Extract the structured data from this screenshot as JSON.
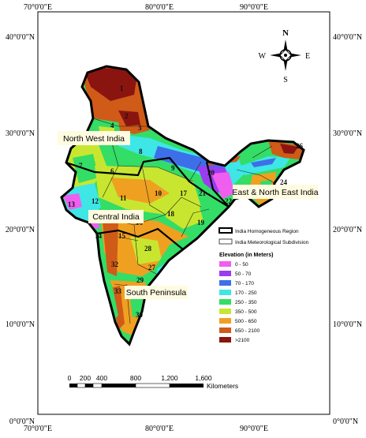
{
  "map": {
    "lon_labels": [
      "70°0'0\"E",
      "80°0'0\"E",
      "90°0'0\"E"
    ],
    "lat_labels": [
      "40°0'0\"N",
      "30°0'0\"N",
      "20°0'0\"N",
      "10°0'0\"N",
      "0°0'0\"N"
    ],
    "regions": {
      "nw": "North West India",
      "central": "Central India",
      "south": "South Peninsula",
      "ene": "East & North East India"
    },
    "legend": {
      "boundary_homog": "India Homogeneous Region",
      "boundary_subdiv": "India Meteorological Subdivision",
      "title": "Elevation (in Meters)",
      "classes": [
        {
          "label": "0 - 50",
          "color": "#f05ef0"
        },
        {
          "label": "50 - 70",
          "color": "#9b3cf0"
        },
        {
          "label": "70 - 170",
          "color": "#3d6fe8"
        },
        {
          "label": "170 - 250",
          "color": "#3ee6e6"
        },
        {
          "label": "250 - 350",
          "color": "#33dd66"
        },
        {
          "label": "350 - 500",
          "color": "#c8e630"
        },
        {
          "label": "500 - 650",
          "color": "#f0a020"
        },
        {
          "label": "650 - 2100",
          "color": "#d05a18"
        },
        {
          "label": ">2100",
          "color": "#8a1410"
        }
      ]
    },
    "compass": {
      "n": "N",
      "s": "S",
      "e": "E",
      "w": "W"
    },
    "scale": {
      "ticks": [
        "0",
        "200",
        "400",
        "800",
        "1,200",
        "1,600"
      ],
      "unit": "Kilometers"
    },
    "subdivisions": [
      "1",
      "2",
      "3",
      "4",
      "5",
      "6",
      "7",
      "8",
      "9",
      "10",
      "11",
      "12",
      "13",
      "14",
      "15",
      "16",
      "17",
      "18",
      "19",
      "20",
      "21",
      "22",
      "24",
      "26",
      "27",
      "28",
      "29",
      "30",
      "32",
      "33"
    ]
  }
}
